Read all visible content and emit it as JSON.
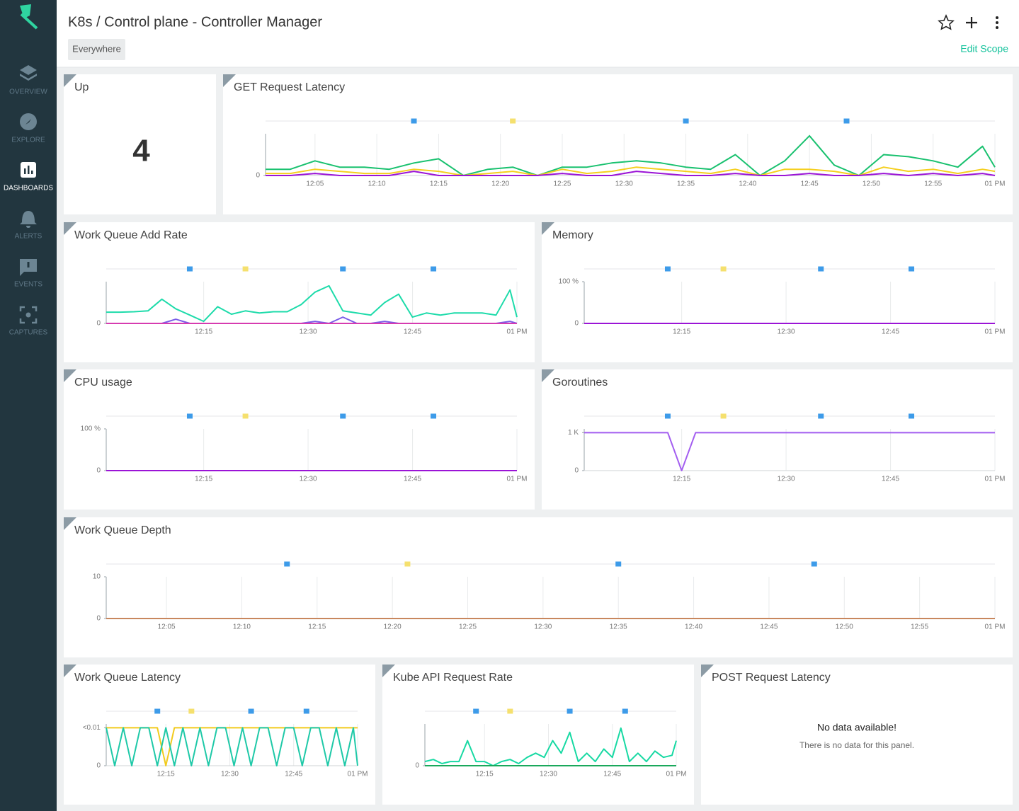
{
  "sidebar": {
    "items": [
      {
        "label": "OVERVIEW",
        "active": false
      },
      {
        "label": "EXPLORE",
        "active": false
      },
      {
        "label": "DASHBOARDS",
        "active": true
      },
      {
        "label": "ALERTS",
        "active": false
      },
      {
        "label": "EVENTS",
        "active": false
      },
      {
        "label": "CAPTURES",
        "active": false
      }
    ]
  },
  "header": {
    "title": "K8s / Control plane - Controller Manager",
    "scope": "Everywhere",
    "edit_scope": "Edit Scope"
  },
  "panels": [
    {
      "type": "stat",
      "title": "Up",
      "value": 4
    },
    {
      "type": "line",
      "title": "GET Request Latency",
      "x": [
        "12:01",
        "12:03",
        "12:05",
        "12:07",
        "12:09",
        "12:11",
        "12:13",
        "12:15",
        "12:17",
        "12:19",
        "12:21",
        "12:23",
        "12:25",
        "12:27",
        "12:29",
        "12:31",
        "12:33",
        "12:35",
        "12:37",
        "12:39",
        "12:41",
        "12:43",
        "12:45",
        "12:47",
        "12:49",
        "12:51",
        "12:53",
        "12:55",
        "12:57",
        "12:59",
        "13:00"
      ],
      "xlim": [
        "12:01",
        "13:00"
      ],
      "xticks": [
        "12:05",
        "12:10",
        "12:15",
        "12:20",
        "12:25",
        "12:30",
        "12:35",
        "12:40",
        "12:45",
        "12:50",
        "12:55",
        {
          "value": "13:00",
          "label": "01 PM"
        }
      ],
      "ylim": [
        0,
        1
      ],
      "yticks": [
        0
      ],
      "events": [
        {
          "x": "12:13",
          "color": "#3d9be9"
        },
        {
          "x": "12:21",
          "color": "#f5e06e"
        },
        {
          "x": "12:35",
          "color": "#3d9be9"
        },
        {
          "x": "12:48",
          "color": "#3d9be9"
        }
      ],
      "series": [
        {
          "color": "#19c16f",
          "values": [
            0.15,
            0.15,
            0.35,
            0.2,
            0.2,
            0.15,
            0.3,
            0.4,
            0.0,
            0.15,
            0.2,
            0.0,
            0.2,
            0.2,
            0.3,
            0.35,
            0.3,
            0.2,
            0.15,
            0.5,
            0.0,
            0.35,
            0.95,
            0.25,
            0.0,
            0.5,
            0.45,
            0.35,
            0.2,
            0.7,
            0.2
          ]
        },
        {
          "color": "#f5cf1f",
          "values": [
            0.05,
            0.05,
            0.15,
            0.1,
            0.05,
            0.05,
            0.15,
            0.1,
            0.0,
            0.05,
            0.1,
            0.0,
            0.15,
            0.05,
            0.1,
            0.2,
            0.15,
            0.1,
            0.05,
            0.15,
            0.0,
            0.15,
            0.15,
            0.1,
            0.0,
            0.2,
            0.1,
            0.15,
            0.05,
            0.15,
            0.1
          ]
        },
        {
          "color": "#9b14d6",
          "values": [
            0.0,
            0.0,
            0.05,
            0.0,
            0.0,
            0.0,
            0.1,
            0.0,
            0.0,
            0.0,
            0.0,
            0.0,
            0.05,
            0.0,
            0.0,
            0.1,
            0.05,
            0.0,
            0.0,
            0.05,
            0.0,
            0.0,
            0.05,
            0.0,
            0.0,
            0.05,
            0.0,
            0.05,
            0.0,
            0.05,
            0.0
          ]
        }
      ]
    },
    {
      "type": "line",
      "title": "Work Queue Add Rate",
      "x": [
        "12:01",
        "12:03",
        "12:05",
        "12:07",
        "12:09",
        "12:11",
        "12:13",
        "12:15",
        "12:17",
        "12:19",
        "12:21",
        "12:23",
        "12:25",
        "12:27",
        "12:29",
        "12:31",
        "12:33",
        "12:35",
        "12:37",
        "12:39",
        "12:41",
        "12:43",
        "12:45",
        "12:47",
        "12:49",
        "12:51",
        "12:53",
        "12:55",
        "12:57",
        "12:59",
        "13:00"
      ],
      "xlim": [
        "12:01",
        "13:00"
      ],
      "xticks": [
        "12:15",
        "12:30",
        "12:45",
        {
          "value": "13:00",
          "label": "01 PM"
        }
      ],
      "ylim": [
        0,
        1
      ],
      "yticks": [
        0
      ],
      "events": [
        {
          "x": "12:13",
          "color": "#3d9be9"
        },
        {
          "x": "12:21",
          "color": "#f5e06e"
        },
        {
          "x": "12:35",
          "color": "#3d9be9"
        },
        {
          "x": "12:48",
          "color": "#3d9be9"
        }
      ],
      "series": [
        {
          "color": "#1ddbaa",
          "values": [
            0.27,
            0.27,
            0.28,
            0.3,
            0.58,
            0.35,
            0.2,
            0.05,
            0.4,
            0.22,
            0.3,
            0.25,
            0.28,
            0.28,
            0.45,
            0.75,
            0.9,
            0.3,
            0.25,
            0.2,
            0.5,
            0.7,
            0.15,
            0.25,
            0.2,
            0.25,
            0.25,
            0.25,
            0.2,
            0.8,
            0.15
          ]
        },
        {
          "color": "#7a5de8",
          "values": [
            0.0,
            0.0,
            0.0,
            0.0,
            0.0,
            0.1,
            0.0,
            0.0,
            0.0,
            0.0,
            0.0,
            0.0,
            0.0,
            0.0,
            0.0,
            0.05,
            0.0,
            0.15,
            0.0,
            0.0,
            0.05,
            0.0,
            0.0,
            0.0,
            0.0,
            0.0,
            0.0,
            0.0,
            0.0,
            0.05,
            0.0
          ]
        },
        {
          "color": "#d63bb0",
          "values": [
            0,
            0,
            0,
            0,
            0,
            0,
            0,
            0,
            0,
            0,
            0,
            0,
            0,
            0,
            0,
            0,
            0,
            0,
            0,
            0,
            0,
            0,
            0,
            0,
            0,
            0,
            0,
            0,
            0,
            0,
            0
          ]
        }
      ]
    },
    {
      "type": "line",
      "title": "Memory",
      "x": [
        "12:01",
        "12:03",
        "12:05",
        "12:07",
        "12:09",
        "12:11",
        "12:13",
        "12:15",
        "12:17",
        "12:19",
        "12:21",
        "12:23",
        "12:25",
        "12:27",
        "12:29",
        "12:31",
        "12:33",
        "12:35",
        "12:37",
        "12:39",
        "12:41",
        "12:43",
        "12:45",
        "12:47",
        "12:49",
        "12:51",
        "12:53",
        "12:55",
        "12:57",
        "12:59",
        "13:00"
      ],
      "xlim": [
        "12:01",
        "13:00"
      ],
      "xticks": [
        "12:15",
        "12:30",
        "12:45",
        {
          "value": "13:00",
          "label": "01 PM"
        }
      ],
      "ylim": [
        0,
        100
      ],
      "yticks": [
        0,
        {
          "value": 100,
          "label": "100 %"
        }
      ],
      "events": [
        {
          "x": "12:13",
          "color": "#3d9be9"
        },
        {
          "x": "12:21",
          "color": "#f5e06e"
        },
        {
          "x": "12:35",
          "color": "#3d9be9"
        },
        {
          "x": "12:48",
          "color": "#3d9be9"
        }
      ],
      "series": [
        {
          "color": "#9b14d6",
          "values": [
            0,
            0,
            0,
            0,
            0,
            0,
            0,
            0,
            0,
            0,
            0,
            0,
            0,
            0,
            0,
            0,
            0,
            0,
            0,
            0,
            0,
            0,
            0,
            0,
            0,
            0,
            0,
            0,
            0,
            0,
            0
          ]
        }
      ]
    },
    {
      "type": "line",
      "title": "CPU usage",
      "x": [
        "12:01",
        "12:03",
        "12:05",
        "12:07",
        "12:09",
        "12:11",
        "12:13",
        "12:15",
        "12:17",
        "12:19",
        "12:21",
        "12:23",
        "12:25",
        "12:27",
        "12:29",
        "12:31",
        "12:33",
        "12:35",
        "12:37",
        "12:39",
        "12:41",
        "12:43",
        "12:45",
        "12:47",
        "12:49",
        "12:51",
        "12:53",
        "12:55",
        "12:57",
        "12:59",
        "13:00"
      ],
      "xlim": [
        "12:01",
        "13:00"
      ],
      "xticks": [
        "12:15",
        "12:30",
        "12:45",
        {
          "value": "13:00",
          "label": "01 PM"
        }
      ],
      "ylim": [
        0,
        100
      ],
      "yticks": [
        0,
        {
          "value": 100,
          "label": "100 %"
        }
      ],
      "events": [
        {
          "x": "12:13",
          "color": "#3d9be9"
        },
        {
          "x": "12:21",
          "color": "#f5e06e"
        },
        {
          "x": "12:35",
          "color": "#3d9be9"
        },
        {
          "x": "12:48",
          "color": "#3d9be9"
        }
      ],
      "series": [
        {
          "color": "#9b14d6",
          "values": [
            0,
            0,
            0,
            0,
            0,
            0,
            0,
            0,
            0,
            0,
            0,
            0,
            0,
            0,
            0,
            0,
            0,
            0,
            0,
            0,
            0,
            0,
            0,
            0,
            0,
            0,
            0,
            0,
            0,
            0,
            0
          ]
        }
      ]
    },
    {
      "type": "line",
      "title": "Goroutines",
      "x": [
        "12:01",
        "12:03",
        "12:05",
        "12:07",
        "12:09",
        "12:11",
        "12:13",
        "12:15",
        "12:17",
        "12:19",
        "12:21",
        "12:23",
        "12:25",
        "12:27",
        "12:29",
        "12:31",
        "12:33",
        "12:35",
        "12:37",
        "12:39",
        "12:41",
        "12:43",
        "12:45",
        "12:47",
        "12:49",
        "12:51",
        "12:53",
        "12:55",
        "12:57",
        "12:59",
        "13:00"
      ],
      "xlim": [
        "12:01",
        "13:00"
      ],
      "xticks": [
        "12:15",
        "12:30",
        "12:45",
        {
          "value": "13:00",
          "label": "01 PM"
        }
      ],
      "ylim": [
        0,
        1100
      ],
      "yticks": [
        0,
        {
          "value": 1000,
          "label": "1 K"
        }
      ],
      "events": [
        {
          "x": "12:13",
          "color": "#3d9be9"
        },
        {
          "x": "12:21",
          "color": "#f5e06e"
        },
        {
          "x": "12:35",
          "color": "#3d9be9"
        },
        {
          "x": "12:48",
          "color": "#3d9be9"
        }
      ],
      "series": [
        {
          "color": "#a35ef0",
          "values": [
            1000,
            1000,
            1000,
            1000,
            1000,
            1000,
            1000,
            0,
            1000,
            1000,
            1000,
            1000,
            1000,
            1000,
            1000,
            1000,
            1000,
            1000,
            1000,
            1000,
            1000,
            1000,
            1000,
            1000,
            1000,
            1000,
            1000,
            1000,
            1000,
            1000,
            1000
          ]
        }
      ]
    },
    {
      "type": "line",
      "title": "Work Queue Depth",
      "x": [
        "12:01",
        "12:03",
        "12:05",
        "12:07",
        "12:09",
        "12:11",
        "12:13",
        "12:15",
        "12:17",
        "12:19",
        "12:21",
        "12:23",
        "12:25",
        "12:27",
        "12:29",
        "12:31",
        "12:33",
        "12:35",
        "12:37",
        "12:39",
        "12:41",
        "12:43",
        "12:45",
        "12:47",
        "12:49",
        "12:51",
        "12:53",
        "12:55",
        "12:57",
        "12:59",
        "13:00"
      ],
      "xlim": [
        "12:01",
        "13:00"
      ],
      "xticks": [
        "12:05",
        "12:10",
        "12:15",
        "12:20",
        "12:25",
        "12:30",
        "12:35",
        "12:40",
        "12:45",
        "12:50",
        "12:55",
        {
          "value": "13:00",
          "label": "01 PM"
        }
      ],
      "ylim": [
        0,
        10
      ],
      "yticks": [
        0,
        10
      ],
      "events": [
        {
          "x": "12:13",
          "color": "#3d9be9"
        },
        {
          "x": "12:21",
          "color": "#f5e06e"
        },
        {
          "x": "12:35",
          "color": "#3d9be9"
        },
        {
          "x": "12:48",
          "color": "#3d9be9"
        }
      ],
      "series": [
        {
          "color": "#c8875e",
          "values": [
            0,
            0,
            0,
            0,
            0,
            0,
            0,
            0,
            0,
            0,
            0,
            0,
            0,
            0,
            0,
            0,
            0,
            0,
            0,
            0,
            0,
            0,
            0,
            0,
            0,
            0,
            0,
            0,
            0,
            0,
            0
          ]
        }
      ]
    },
    {
      "type": "line",
      "title": "Work Queue Latency",
      "x": [
        "12:01",
        "12:03",
        "12:05",
        "12:07",
        "12:09",
        "12:11",
        "12:13",
        "12:15",
        "12:17",
        "12:19",
        "12:21",
        "12:23",
        "12:25",
        "12:27",
        "12:29",
        "12:31",
        "12:33",
        "12:35",
        "12:37",
        "12:39",
        "12:41",
        "12:43",
        "12:45",
        "12:47",
        "12:49",
        "12:51",
        "12:53",
        "12:55",
        "12:57",
        "12:59",
        "13:00"
      ],
      "xlim": [
        "12:01",
        "13:00"
      ],
      "xticks": [
        "12:15",
        "12:30",
        "12:45",
        {
          "value": "13:00",
          "label": "01 PM"
        }
      ],
      "ylim": [
        0,
        0.011
      ],
      "yticks": [
        0,
        {
          "value": 0.01,
          "label": "<0.01"
        }
      ],
      "events": [
        {
          "x": "12:13",
          "color": "#3d9be9"
        },
        {
          "x": "12:21",
          "color": "#f5e06e"
        },
        {
          "x": "12:35",
          "color": "#3d9be9"
        },
        {
          "x": "12:48",
          "color": "#3d9be9"
        }
      ],
      "series": [
        {
          "color": "#f2cb1d",
          "values": [
            0.01,
            0.01,
            0.01,
            0.01,
            0.01,
            0.01,
            0.01,
            0,
            0.01,
            0.01,
            0.01,
            0.01,
            0.01,
            0.01,
            0.01,
            0.01,
            0.01,
            0.01,
            0.01,
            0.01,
            0.01,
            0.01,
            0.01,
            0.01,
            0.01,
            0.01,
            0.01,
            0.01,
            0.01,
            0.01,
            0.01
          ]
        },
        {
          "color": "#1fc9a8",
          "values": [
            0.01,
            0,
            0.01,
            0,
            0.01,
            0.01,
            0,
            0.01,
            0,
            0.01,
            0,
            0.01,
            0,
            0.01,
            0.01,
            0,
            0.01,
            0,
            0.01,
            0.01,
            0,
            0.01,
            0.01,
            0,
            0.01,
            0.01,
            0,
            0.01,
            0,
            0.01,
            0
          ]
        }
      ]
    },
    {
      "type": "line",
      "title": "Kube API Request Rate",
      "x": [
        "12:01",
        "12:03",
        "12:05",
        "12:07",
        "12:09",
        "12:11",
        "12:13",
        "12:15",
        "12:17",
        "12:19",
        "12:21",
        "12:23",
        "12:25",
        "12:27",
        "12:29",
        "12:31",
        "12:33",
        "12:35",
        "12:37",
        "12:39",
        "12:41",
        "12:43",
        "12:45",
        "12:47",
        "12:49",
        "12:51",
        "12:53",
        "12:55",
        "12:57",
        "12:59",
        "13:00"
      ],
      "xlim": [
        "12:01",
        "13:00"
      ],
      "xticks": [
        "12:15",
        "12:30",
        "12:45",
        {
          "value": "13:00",
          "label": "01 PM"
        }
      ],
      "ylim": [
        0,
        1
      ],
      "yticks": [
        0
      ],
      "events": [
        {
          "x": "12:13",
          "color": "#3d9be9"
        },
        {
          "x": "12:21",
          "color": "#f5e06e"
        },
        {
          "x": "12:35",
          "color": "#3d9be9"
        },
        {
          "x": "12:48",
          "color": "#3d9be9"
        }
      ],
      "series": [
        {
          "color": "#17d9a3",
          "values": [
            0.1,
            0.15,
            0.05,
            0.1,
            0.1,
            0.6,
            0.1,
            0.1,
            0.0,
            0.1,
            0.15,
            0.05,
            0.2,
            0.3,
            0.2,
            0.6,
            0.3,
            0.8,
            0.1,
            0.3,
            0.1,
            0.4,
            0.2,
            0.9,
            0.1,
            0.3,
            0.1,
            0.35,
            0.2,
            0.25,
            0.6
          ]
        },
        {
          "color": "#1aa85c",
          "values": [
            0,
            0,
            0,
            0,
            0,
            0,
            0,
            0,
            0,
            0,
            0,
            0,
            0,
            0,
            0,
            0,
            0,
            0,
            0,
            0,
            0,
            0,
            0,
            0,
            0,
            0,
            0,
            0,
            0,
            0,
            0
          ]
        }
      ]
    },
    {
      "type": "empty",
      "title": "POST Request Latency",
      "message": "No data available!",
      "detail": "There is no data for this panel."
    }
  ]
}
